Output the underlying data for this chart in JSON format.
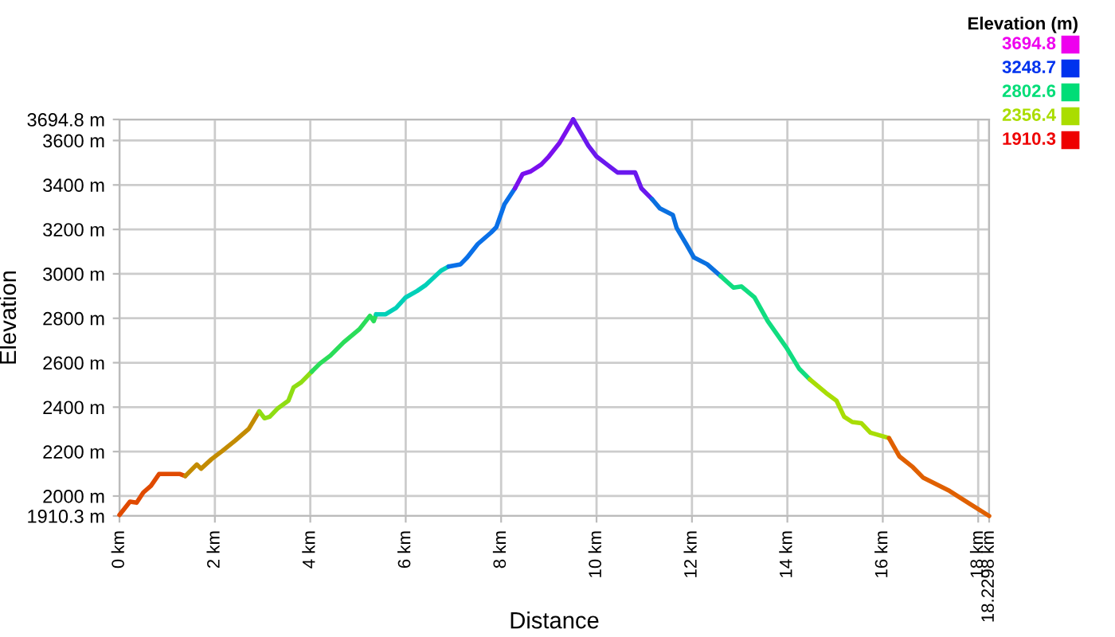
{
  "chart_data": {
    "type": "line",
    "xlabel": "Distance",
    "ylabel": "Elevation",
    "clabel": "Elevation (m)",
    "xlim": [
      0,
      18.2298
    ],
    "ylim": [
      1910.3,
      3694.8
    ],
    "xticks": [
      {
        "value": 0,
        "label": "0 km"
      },
      {
        "value": 2,
        "label": "2 km"
      },
      {
        "value": 4,
        "label": "4 km"
      },
      {
        "value": 6,
        "label": "6 km"
      },
      {
        "value": 8,
        "label": "8 km"
      },
      {
        "value": 10,
        "label": "10 km"
      },
      {
        "value": 12,
        "label": "12 km"
      },
      {
        "value": 14,
        "label": "14 km"
      },
      {
        "value": 16,
        "label": "16 km"
      },
      {
        "value": 18,
        "label": "18 km"
      },
      {
        "value": 18.2298,
        "label": "18.2298 km"
      }
    ],
    "yticks": [
      {
        "value": 1910.3,
        "label": "1910.3 m"
      },
      {
        "value": 2000,
        "label": "2000 m"
      },
      {
        "value": 2200,
        "label": "2200 m"
      },
      {
        "value": 2400,
        "label": "2400 m"
      },
      {
        "value": 2600,
        "label": "2600 m"
      },
      {
        "value": 2800,
        "label": "2800 m"
      },
      {
        "value": 3000,
        "label": "3000 m"
      },
      {
        "value": 3200,
        "label": "3200 m"
      },
      {
        "value": 3400,
        "label": "3400 m"
      },
      {
        "value": 3600,
        "label": "3600 m"
      },
      {
        "value": 3694.8,
        "label": "3694.8 m"
      }
    ],
    "cticks": [
      1910.3,
      2356.4,
      2802.6,
      3248.7,
      3694.8
    ],
    "colors": [
      "#ee0000",
      "#aadd00",
      "#00dd77",
      "#0033ee",
      "#ee00ee"
    ],
    "grid": true,
    "series": [
      {
        "color": "#e04a00",
        "x": [
          0,
          0.22,
          0.36,
          0.5,
          0.66,
          0.83,
          1.27,
          1.38
        ],
        "values": [
          1915,
          1975,
          1970,
          2016,
          2046,
          2099,
          2099,
          2090
        ]
      },
      {
        "color": "#c38b00",
        "x": [
          1.38,
          1.62,
          1.71,
          1.93,
          2.15,
          2.43,
          2.71,
          2.93
        ],
        "values": [
          2090,
          2142,
          2123,
          2166,
          2202,
          2250,
          2302,
          2381
        ]
      },
      {
        "color": "#8fdd13",
        "x": [
          2.93,
          3.04,
          3.15,
          3.31,
          3.54,
          3.65,
          3.81,
          4.03
        ],
        "values": [
          2381,
          2350,
          2357,
          2393,
          2429,
          2489,
          2512,
          2560
        ]
      },
      {
        "color": "#2add59",
        "x": [
          4.03,
          4.2,
          4.42,
          4.7,
          5.03,
          5.25,
          5.33,
          5.38
        ],
        "values": [
          2560,
          2596,
          2632,
          2692,
          2751,
          2811,
          2787,
          2818
        ]
      },
      {
        "color": "#00d0b8",
        "x": [
          5.38,
          5.58,
          5.8,
          6.0,
          6.24,
          6.41,
          6.74,
          6.9
        ],
        "values": [
          2818,
          2818,
          2847,
          2894,
          2923,
          2948,
          3014,
          3033
        ]
      },
      {
        "color": "#0a70e8",
        "x": [
          6.9,
          7.15,
          7.29,
          7.51,
          7.79,
          7.9,
          8.07,
          8.29
        ],
        "values": [
          3033,
          3043,
          3074,
          3134,
          3186,
          3210,
          3313,
          3385
        ]
      },
      {
        "color": "#7a10ee",
        "x": [
          8.29,
          8.45,
          8.62,
          8.84,
          9.0,
          9.22,
          9.45,
          9.51
        ],
        "values": [
          3385,
          3449,
          3461,
          3492,
          3528,
          3588,
          3672,
          3694.8
        ]
      },
      {
        "color": "#6a18ee",
        "x": [
          9.51,
          9.83,
          10.0,
          10.22,
          10.44,
          10.81,
          10.94,
          11.16
        ],
        "values": [
          3694.8,
          3576,
          3528,
          3492,
          3456,
          3456,
          3385,
          3337
        ]
      },
      {
        "color": "#0a70e0",
        "x": [
          11.16,
          11.33,
          11.6,
          11.68,
          11.88,
          12.04,
          12.32,
          12.6
        ],
        "values": [
          3337,
          3294,
          3265,
          3206,
          3134,
          3074,
          3043,
          2990
        ]
      },
      {
        "color": "#10dd80",
        "x": [
          12.6,
          12.87,
          13.04,
          13.31,
          13.59,
          13.98,
          14.25,
          14.47
        ],
        "values": [
          2990,
          2938,
          2943,
          2894,
          2787,
          2668,
          2572,
          2525
        ]
      },
      {
        "color": "#a8dd05",
        "x": [
          14.47,
          14.81,
          15.03,
          15.19,
          15.36,
          15.55,
          15.74,
          16.13
        ],
        "values": [
          2525,
          2464,
          2429,
          2357,
          2333,
          2328,
          2285,
          2261
        ]
      },
      {
        "color": "#e06000",
        "x": [
          16.13,
          16.35,
          16.63,
          16.85,
          17.4,
          17.84,
          18.2298
        ],
        "values": [
          2261,
          2178,
          2130,
          2082,
          2023,
          1963,
          1910.3
        ]
      }
    ]
  }
}
